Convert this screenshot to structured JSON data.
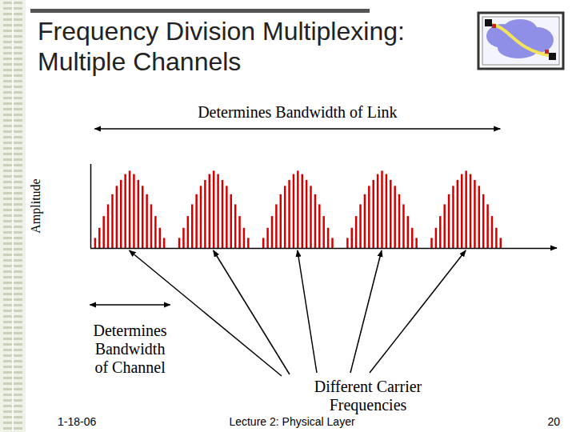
{
  "slide": {
    "title": [
      "Frequency Division Multiplexing:",
      "Multiple Channels"
    ],
    "footer": {
      "date": "1-18-06",
      "lecture": "Lecture 2: Physical Layer",
      "page": "20"
    }
  },
  "chart_data": {
    "type": "bar",
    "y_label": "Amplitude",
    "tick_labels": false,
    "xlim": [
      0,
      107
    ],
    "ylim": [
      0,
      100
    ],
    "color": "#d40000",
    "offsets": [
      -8,
      -7,
      -6,
      -5,
      -4,
      -3,
      -2,
      -1,
      0,
      1,
      2,
      3,
      4,
      5,
      6,
      7,
      8
    ],
    "channels": [
      {
        "carrier": 9,
        "values": [
          12,
          24,
          38,
          52,
          64,
          74,
          81,
          88,
          92,
          88,
          81,
          74,
          64,
          52,
          38,
          24,
          12
        ]
      },
      {
        "carrier": 28.5,
        "values": [
          12,
          24,
          38,
          52,
          64,
          74,
          81,
          88,
          92,
          88,
          81,
          74,
          64,
          52,
          38,
          24,
          12
        ]
      },
      {
        "carrier": 48,
        "values": [
          12,
          24,
          38,
          52,
          64,
          74,
          81,
          88,
          92,
          88,
          81,
          74,
          64,
          52,
          38,
          24,
          12
        ]
      },
      {
        "carrier": 67.5,
        "values": [
          12,
          24,
          38,
          52,
          64,
          74,
          81,
          88,
          92,
          88,
          81,
          74,
          64,
          52,
          38,
          24,
          12
        ]
      },
      {
        "carrier": 87,
        "values": [
          12,
          24,
          38,
          52,
          64,
          74,
          81,
          88,
          92,
          88,
          81,
          74,
          64,
          52,
          38,
          24,
          12
        ]
      }
    ]
  },
  "annotations": {
    "link_bandwidth": "Determines Bandwidth of Link",
    "channel_bandwidth": [
      "Determines",
      "Bandwidth",
      "of Channel"
    ],
    "carriers": [
      "Different Carrier",
      "Frequencies"
    ]
  }
}
